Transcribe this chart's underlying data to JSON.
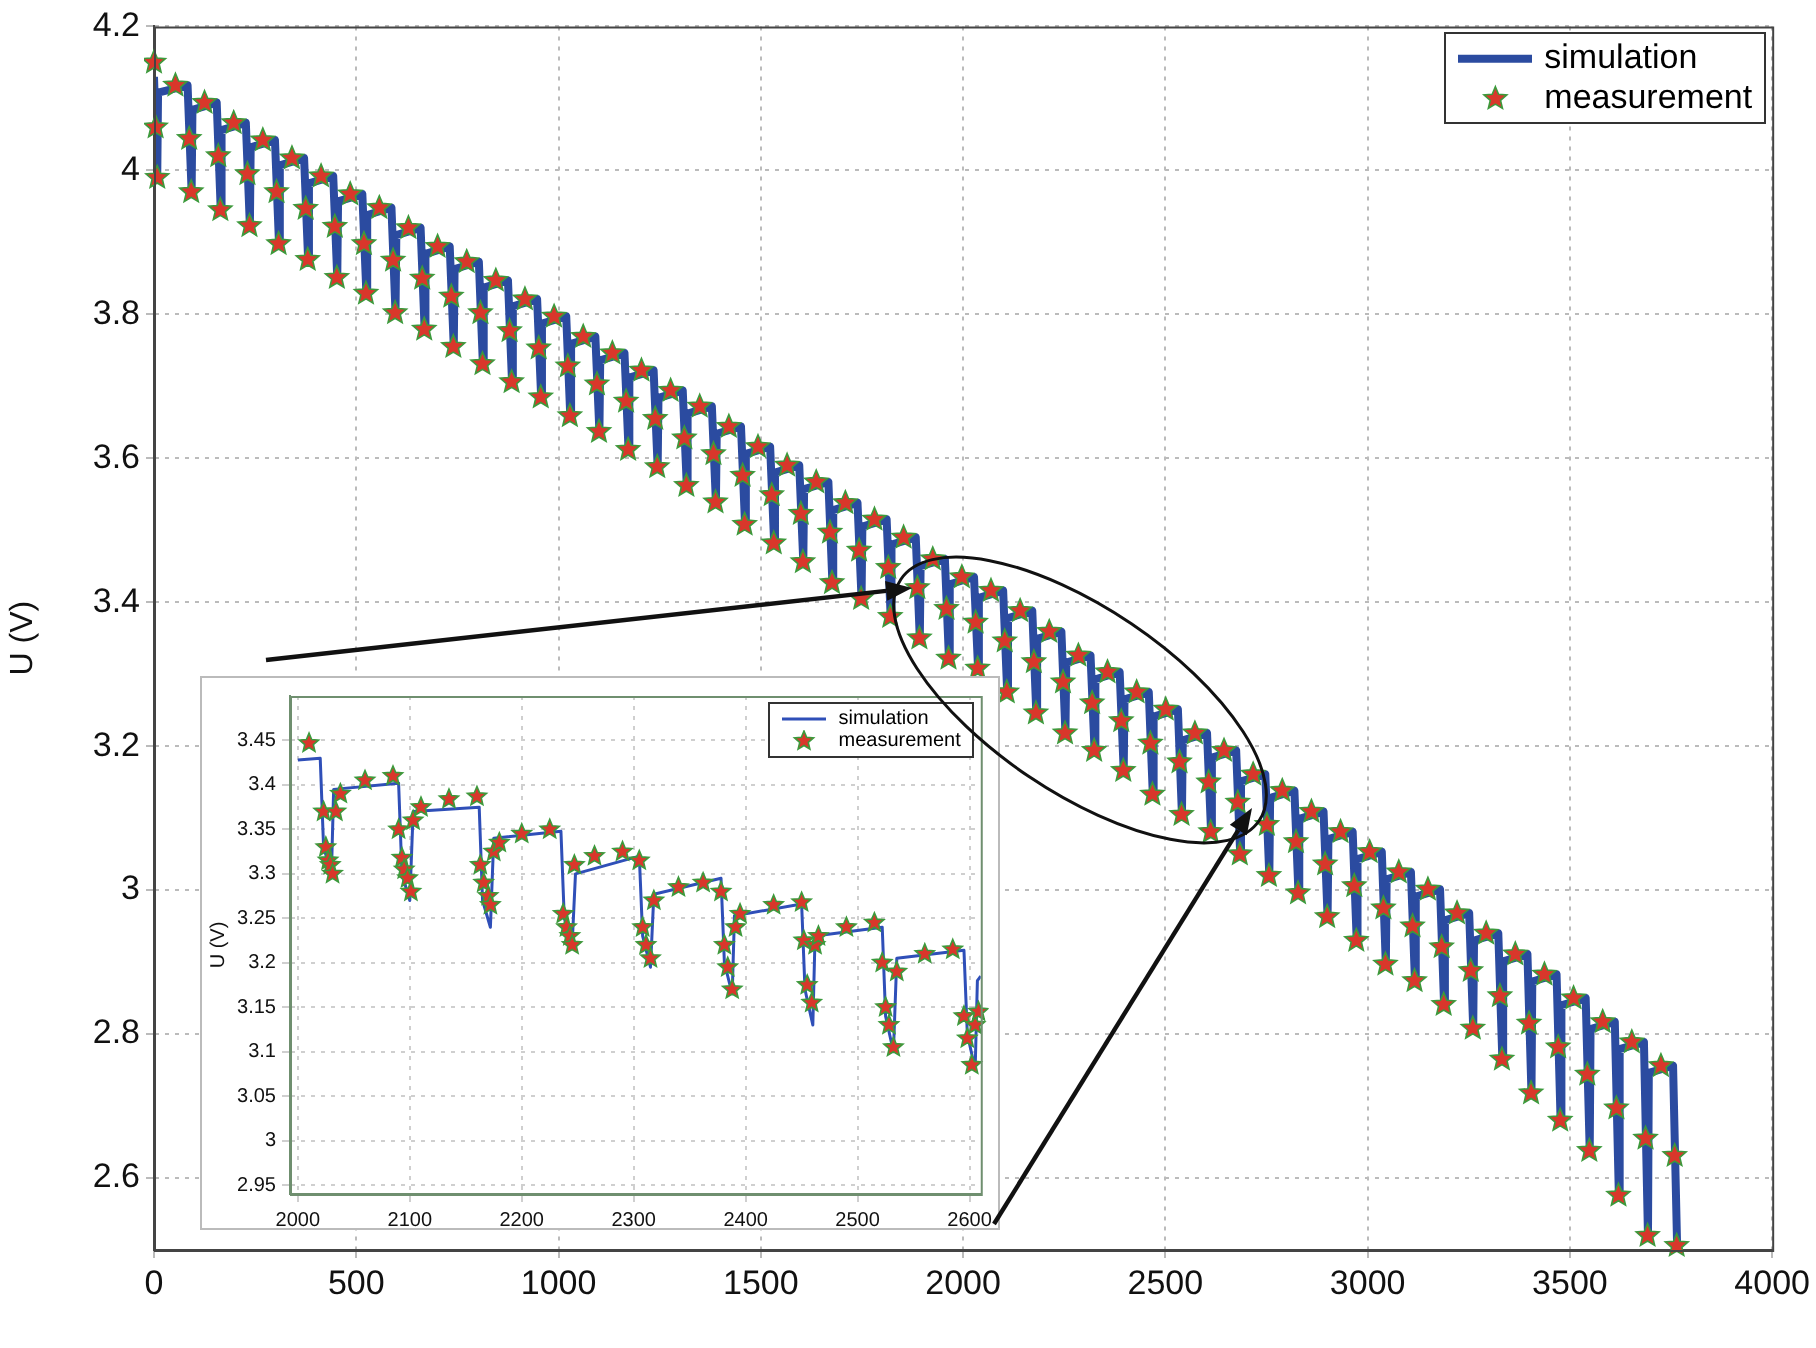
{
  "chart_data": [
    {
      "type": "line",
      "ylabel": "U (V)",
      "xlim": [
        0,
        4000
      ],
      "ylim": [
        2.5,
        4.2
      ],
      "xticks": [
        0,
        500,
        1000,
        1500,
        2000,
        2500,
        3000,
        3500,
        4000
      ],
      "yticks": [
        2.6,
        2.8,
        3,
        3.2,
        3.4,
        3.6,
        3.8,
        4,
        4.2
      ],
      "grid": true,
      "legend": "top right",
      "series": [
        {
          "name": "simulation",
          "type": "line",
          "marker": "none",
          "color": "#2b4ba0",
          "x": [
            0,
            8,
            10,
            83,
            93,
            95,
            155,
            165,
            167,
            227,
            237,
            239,
            299,
            309,
            311,
            371,
            381,
            383,
            443,
            453,
            455,
            515,
            525,
            527,
            587,
            597,
            599,
            659,
            669,
            671,
            731,
            741,
            743,
            803,
            813,
            815,
            875,
            885,
            887,
            947,
            957,
            959,
            1019,
            1029,
            1031,
            1091,
            1101,
            1103,
            1163,
            1173,
            1175,
            1235,
            1245,
            1247,
            1307,
            1317,
            1319,
            1379,
            1389,
            1391,
            1451,
            1461,
            1463,
            1523,
            1533,
            1535,
            1595,
            1605,
            1607,
            1667,
            1677,
            1679,
            1739,
            1749,
            1751,
            1811,
            1821,
            1823,
            1883,
            1893,
            1895,
            1955,
            1965,
            1967,
            2027,
            2037,
            2039,
            2099,
            2109,
            2111,
            2171,
            2181,
            2183,
            2243,
            2253,
            2255,
            2315,
            2325,
            2327,
            2387,
            2397,
            2399,
            2459,
            2469,
            2471,
            2531,
            2541,
            2543,
            2603,
            2613,
            2615,
            2675,
            2685,
            2687,
            2747,
            2757,
            2759,
            2819,
            2829,
            2831,
            2891,
            2901,
            2903,
            2963,
            2973,
            2975,
            3035,
            3045,
            3047,
            3107,
            3117,
            3119,
            3179,
            3189,
            3191,
            3251,
            3261,
            3263,
            3323,
            3333,
            3335,
            3395,
            3405,
            3407,
            3467,
            3477,
            3479,
            3539,
            3549,
            3551,
            3611,
            3621,
            3623,
            3683,
            3693,
            3695,
            3755,
            3765
          ],
          "values": [
            4.13,
            3.99,
            4.108,
            4.118,
            3.97,
            4.084,
            4.094,
            3.945,
            4.056,
            4.066,
            3.923,
            4.032,
            4.042,
            3.898,
            4.007,
            4.017,
            3.876,
            3.982,
            3.992,
            3.851,
            3.957,
            3.967,
            3.829,
            3.938,
            3.948,
            3.802,
            3.91,
            3.92,
            3.779,
            3.884,
            3.894,
            3.755,
            3.863,
            3.873,
            3.731,
            3.837,
            3.847,
            3.706,
            3.811,
            3.821,
            3.685,
            3.787,
            3.797,
            3.659,
            3.759,
            3.769,
            3.637,
            3.736,
            3.746,
            3.612,
            3.712,
            3.722,
            3.588,
            3.684,
            3.694,
            3.562,
            3.662,
            3.672,
            3.539,
            3.634,
            3.644,
            3.508,
            3.606,
            3.616,
            3.482,
            3.58,
            3.59,
            3.456,
            3.557,
            3.567,
            3.427,
            3.528,
            3.538,
            3.405,
            3.505,
            3.515,
            3.38,
            3.48,
            3.49,
            3.35,
            3.45,
            3.46,
            3.322,
            3.425,
            3.435,
            3.308,
            3.406,
            3.416,
            3.275,
            3.378,
            3.388,
            3.246,
            3.349,
            3.359,
            3.218,
            3.316,
            3.326,
            3.194,
            3.293,
            3.303,
            3.166,
            3.265,
            3.275,
            3.133,
            3.241,
            3.251,
            3.105,
            3.208,
            3.218,
            3.081,
            3.184,
            3.194,
            3.05,
            3.151,
            3.161,
            3.02,
            3.128,
            3.138,
            2.996,
            3.099,
            3.109,
            2.963,
            3.071,
            3.081,
            2.93,
            3.043,
            3.053,
            2.897,
            3.015,
            3.025,
            2.874,
            2.991,
            3.001,
            2.841,
            2.958,
            2.968,
            2.808,
            2.93,
            2.94,
            2.765,
            2.901,
            2.911,
            2.718,
            2.873,
            2.883,
            2.68,
            2.84,
            2.85,
            2.638,
            2.807,
            2.817,
            2.576,
            2.779,
            2.789,
            2.52,
            2.746,
            2.756,
            2.506
          ]
        },
        {
          "name": "measurement",
          "type": "scatter",
          "marker": "star",
          "color": "#d9372b",
          "x": [
            0,
            4,
            8,
            53,
            87,
            92,
            125,
            159,
            164,
            197,
            231,
            236,
            269,
            303,
            308,
            341,
            375,
            380,
            413,
            447,
            452,
            485,
            519,
            524,
            557,
            591,
            596,
            629,
            663,
            668,
            701,
            735,
            740,
            773,
            807,
            812,
            845,
            879,
            884,
            917,
            951,
            956,
            989,
            1023,
            1028,
            1061,
            1095,
            1100,
            1133,
            1167,
            1172,
            1205,
            1239,
            1244,
            1277,
            1311,
            1316,
            1349,
            1383,
            1388,
            1421,
            1455,
            1460,
            1493,
            1527,
            1532,
            1565,
            1599,
            1604,
            1637,
            1671,
            1676,
            1709,
            1743,
            1748,
            1781,
            1815,
            1820,
            1853,
            1887,
            1892,
            1925,
            1959,
            1964,
            1997,
            2031,
            2036,
            2069,
            2103,
            2108,
            2141,
            2175,
            2180,
            2213,
            2247,
            2252,
            2285,
            2319,
            2324,
            2357,
            2391,
            2396,
            2429,
            2463,
            2468,
            2501,
            2535,
            2540,
            2573,
            2607,
            2612,
            2645,
            2679,
            2684,
            2717,
            2751,
            2756,
            2789,
            2823,
            2828,
            2861,
            2895,
            2900,
            2933,
            2967,
            2972,
            3005,
            3039,
            3044,
            3077,
            3111,
            3116,
            3149,
            3183,
            3188,
            3221,
            3255,
            3260,
            3293,
            3327,
            3332,
            3365,
            3399,
            3404,
            3437,
            3471,
            3476,
            3509,
            3543,
            3548,
            3581,
            3615,
            3620,
            3653,
            3687,
            3692,
            3725,
            3759,
            3764
          ],
          "values": [
            4.15,
            4.06,
            3.99,
            4.118,
            4.044,
            3.97,
            4.094,
            4.02,
            3.945,
            4.066,
            3.995,
            3.923,
            4.042,
            3.97,
            3.898,
            4.017,
            3.947,
            3.876,
            3.992,
            3.922,
            3.851,
            3.967,
            3.898,
            3.829,
            3.948,
            3.875,
            3.802,
            3.92,
            3.85,
            3.779,
            3.894,
            3.825,
            3.755,
            3.873,
            3.802,
            3.731,
            3.847,
            3.777,
            3.706,
            3.821,
            3.753,
            3.685,
            3.797,
            3.728,
            3.659,
            3.769,
            3.703,
            3.637,
            3.746,
            3.679,
            3.612,
            3.722,
            3.655,
            3.588,
            3.694,
            3.628,
            3.562,
            3.672,
            3.606,
            3.539,
            3.644,
            3.576,
            3.508,
            3.616,
            3.549,
            3.482,
            3.59,
            3.523,
            3.456,
            3.567,
            3.497,
            3.427,
            3.538,
            3.472,
            3.405,
            3.515,
            3.448,
            3.38,
            3.49,
            3.42,
            3.35,
            3.46,
            3.391,
            3.322,
            3.435,
            3.372,
            3.308,
            3.416,
            3.346,
            3.275,
            3.388,
            3.317,
            3.246,
            3.359,
            3.289,
            3.218,
            3.326,
            3.26,
            3.194,
            3.303,
            3.235,
            3.166,
            3.275,
            3.204,
            3.133,
            3.251,
            3.178,
            3.105,
            3.218,
            3.15,
            3.081,
            3.194,
            3.122,
            3.05,
            3.161,
            3.091,
            3.02,
            3.138,
            3.067,
            2.996,
            3.109,
            3.036,
            2.963,
            3.081,
            3.006,
            2.93,
            3.053,
            2.975,
            2.897,
            3.025,
            2.95,
            2.874,
            3.001,
            2.921,
            2.841,
            2.968,
            2.888,
            2.808,
            2.94,
            2.853,
            2.765,
            2.911,
            2.815,
            2.718,
            2.883,
            2.782,
            2.68,
            2.85,
            2.744,
            2.638,
            2.817,
            2.697,
            2.576,
            2.789,
            2.655,
            2.52,
            2.756,
            2.631,
            2.506
          ]
        }
      ]
    },
    {
      "type": "line",
      "ylabel": "U (V)",
      "xlim": [
        1993,
        2610
      ],
      "ylim": [
        2.94,
        3.5
      ],
      "xticks": [
        2000,
        2100,
        2200,
        2300,
        2400,
        2500,
        2600
      ],
      "yticks": [
        2.95,
        3,
        3.05,
        3.1,
        3.15,
        3.2,
        3.25,
        3.3,
        3.35,
        3.4,
        3.45
      ],
      "grid": true,
      "legend": "top right",
      "series": [
        {
          "name": "simulation",
          "type": "line",
          "marker": "none",
          "color": "#2f4fb8",
          "x": [
            2000,
            2020,
            2023,
            2030,
            2032,
            2090,
            2093,
            2100,
            2103,
            2162,
            2165,
            2172,
            2175,
            2235,
            2238,
            2245,
            2248,
            2305,
            2308,
            2315,
            2318,
            2378,
            2381,
            2388,
            2390,
            2450,
            2453,
            2460,
            2462,
            2522,
            2525,
            2532,
            2535,
            2595,
            2598,
            2605,
            2607,
            2610
          ],
          "values": [
            3.428,
            3.43,
            3.33,
            3.3,
            3.395,
            3.402,
            3.3,
            3.27,
            3.37,
            3.375,
            3.27,
            3.24,
            3.34,
            3.348,
            3.25,
            3.22,
            3.3,
            3.32,
            3.23,
            3.195,
            3.277,
            3.295,
            3.2,
            3.165,
            3.253,
            3.266,
            3.17,
            3.13,
            3.23,
            3.24,
            3.14,
            3.1,
            3.205,
            3.214,
            3.12,
            3.08,
            3.18,
            3.185
          ]
        },
        {
          "name": "measurement",
          "type": "scatter",
          "marker": "star",
          "color": "#d9372b",
          "x": [
            2010,
            2023,
            2025,
            2027,
            2029,
            2031,
            2034,
            2038,
            2060,
            2085,
            2090,
            2093,
            2095,
            2098,
            2101,
            2103,
            2110,
            2135,
            2160,
            2163,
            2166,
            2170,
            2172,
            2175,
            2180,
            2200,
            2225,
            2237,
            2240,
            2243,
            2245,
            2247,
            2265,
            2290,
            2305,
            2308,
            2311,
            2315,
            2318,
            2340,
            2362,
            2378,
            2381,
            2384,
            2388,
            2391,
            2395,
            2425,
            2450,
            2452,
            2455,
            2459,
            2462,
            2465,
            2490,
            2515,
            2522,
            2525,
            2528,
            2532,
            2535,
            2560,
            2585,
            2595,
            2598,
            2602,
            2605,
            2608
          ],
          "values": [
            3.447,
            3.37,
            3.33,
            3.315,
            3.31,
            3.3,
            3.37,
            3.39,
            3.405,
            3.41,
            3.35,
            3.318,
            3.305,
            3.295,
            3.28,
            3.36,
            3.375,
            3.384,
            3.387,
            3.31,
            3.29,
            3.275,
            3.265,
            3.325,
            3.335,
            3.345,
            3.35,
            3.255,
            3.24,
            3.23,
            3.22,
            3.31,
            3.32,
            3.325,
            3.315,
            3.24,
            3.22,
            3.205,
            3.27,
            3.285,
            3.29,
            3.28,
            3.22,
            3.195,
            3.17,
            3.24,
            3.255,
            3.265,
            3.268,
            3.225,
            3.175,
            3.155,
            3.22,
            3.23,
            3.24,
            3.245,
            3.2,
            3.15,
            3.13,
            3.105,
            3.19,
            3.21,
            3.215,
            3.14,
            3.115,
            3.085,
            3.13,
            3.145
          ]
        }
      ]
    }
  ]
}
